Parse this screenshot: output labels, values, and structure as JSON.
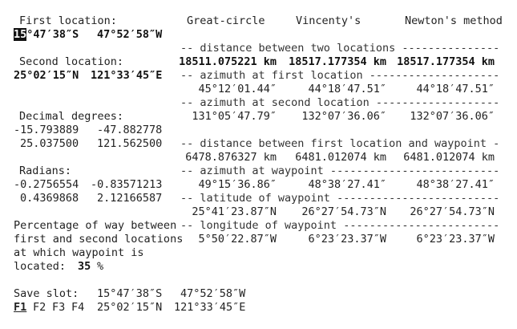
{
  "left": {
    "first_label": "First location:",
    "first_lat_cursor": "15",
    "first_lat_rest": "°47′38″S",
    "first_lon": "47°52′58″W",
    "second_label": "Second location:",
    "second_lat": "25°02′15″N",
    "second_lon": "121°33′45″E",
    "decimal_label": "Decimal degrees:",
    "dec1_lat": "-15.793889",
    "dec1_lon": "-47.882778",
    "dec2_lat": "25.037500",
    "dec2_lon": "121.562500",
    "radians_label": "Radians:",
    "rad1_lat": "-0.2756554",
    "rad1_lon": "-0.83571213",
    "rad2_lat": "0.4369868",
    "rad2_lon": "2.12166587",
    "pct_line1": "Percentage of way between",
    "pct_line2": "first and second locations",
    "pct_line3": "at which waypoint is",
    "pct_line4": "located:",
    "pct_value": "35",
    "pct_unit": "%",
    "save_label": "Save slot:",
    "slot1_lat": "15°47′38″S",
    "slot1_lon": "47°52′58″W",
    "slot2_lat": "25°02′15″N",
    "slot2_lon": "121°33′45″E",
    "f1": "F1",
    "f2": "F2",
    "f3": "F3",
    "f4": "F4"
  },
  "headers": {
    "great_circle": "Great-circle",
    "vincenty": "Vincenty's",
    "newton": "Newton's method"
  },
  "sections": {
    "distance": "-- distance between two locations ---------------",
    "azimuth_first": "-- azimuth at first location --------------------",
    "azimuth_second": "-- azimuth at second location -------------------",
    "distance_waypoint": "-- distance between first location and waypoint -",
    "azimuth_waypoint": "-- azimuth at waypoint --------------------------",
    "latitude_waypoint": "-- latitude of waypoint -------------------------",
    "longitude_waypoint": "-- longitude of waypoint ------------------------"
  },
  "values": {
    "distance": [
      "18511.075221 km",
      "18517.177354 km",
      "18517.177354 km"
    ],
    "azimuth_first": [
      "45°12′01.44″",
      "44°18′47.51″",
      "44°18′47.51″"
    ],
    "azimuth_second": [
      "131°05′47.79″",
      "132°07′36.06″",
      "132°07′36.06″"
    ],
    "distance_waypoint": [
      "6478.876327 km",
      "6481.012074 km",
      "6481.012074 km"
    ],
    "azimuth_waypoint": [
      "49°15′36.86″",
      "48°38′27.41″",
      "48°38′27.41″"
    ],
    "latitude_waypoint": [
      "25°41′23.87″N",
      "26°27′54.73″N",
      "26°27′54.73″N"
    ],
    "longitude_waypoint": [
      "5°50′22.87″W",
      "6°23′23.37″W",
      "6°23′23.37″W"
    ]
  }
}
